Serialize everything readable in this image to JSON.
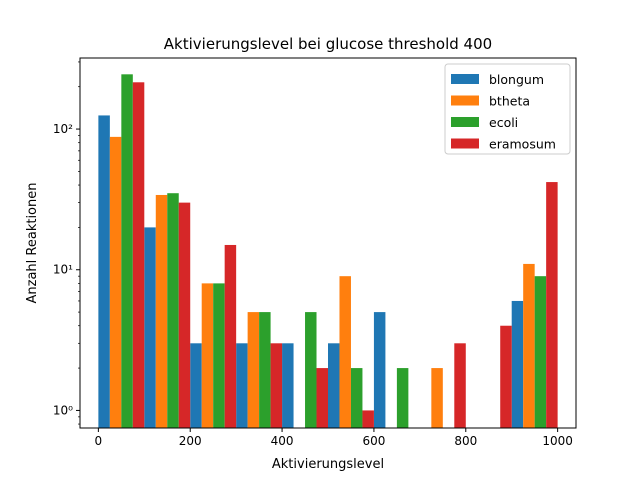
{
  "chart_data": {
    "type": "bar",
    "title": "Aktivierungslevel bei glucose threshold 400",
    "xlabel": "Aktivierungslevel",
    "ylabel": "Anzahl Reaktionen",
    "yscale": "log",
    "xlim": [
      -40,
      1040
    ],
    "ylim": [
      0.75,
      320
    ],
    "xticks": [
      0,
      200,
      400,
      600,
      800,
      1000
    ],
    "xtick_labels": [
      "0",
      "200",
      "400",
      "600",
      "800",
      "1000"
    ],
    "yticks": [
      1,
      10,
      100
    ],
    "ytick_labels": [
      "10⁰",
      "10¹",
      "10²"
    ],
    "bin_edges": [
      0,
      100,
      200,
      300,
      400,
      500,
      600,
      700,
      800,
      900,
      1000
    ],
    "legend_position": "upper right",
    "grid": false,
    "series": [
      {
        "name": "blongum",
        "color": "#1f77b4",
        "values": [
          125,
          20,
          3,
          3,
          3,
          3,
          5,
          0,
          0,
          6
        ]
      },
      {
        "name": "btheta",
        "color": "#ff7f0e",
        "values": [
          88,
          34,
          8,
          5,
          0,
          9,
          0,
          2,
          0,
          11
        ]
      },
      {
        "name": "ecoli",
        "color": "#2ca02c",
        "values": [
          245,
          35,
          8,
          5,
          5,
          2,
          2,
          0,
          0,
          9
        ]
      },
      {
        "name": "eramosum",
        "color": "#d62728",
        "values": [
          215,
          30,
          15,
          3,
          2,
          1,
          0,
          3,
          4,
          42
        ]
      }
    ]
  }
}
